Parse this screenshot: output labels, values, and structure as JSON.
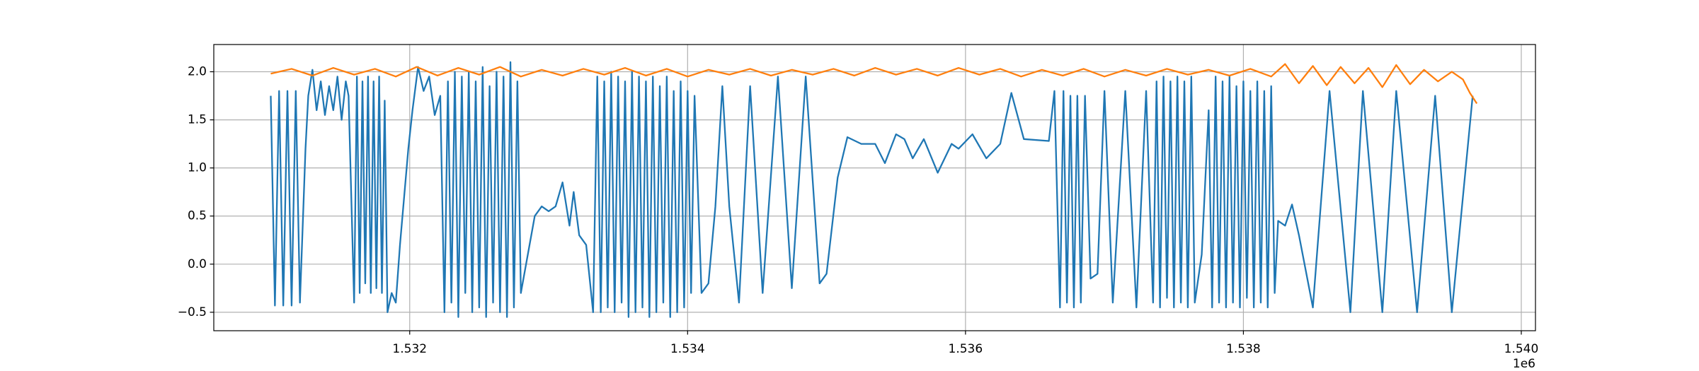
{
  "chart_data": {
    "type": "line",
    "x_offset_label": "1e6",
    "xlim": [
      1530590,
      1540102
    ],
    "ylim": [
      -0.692,
      2.283
    ],
    "xticks": [
      {
        "value": 1532000,
        "label": "1.532"
      },
      {
        "value": 1534000,
        "label": "1.534"
      },
      {
        "value": 1536000,
        "label": "1.536"
      },
      {
        "value": 1538000,
        "label": "1.538"
      },
      {
        "value": 1540000,
        "label": "1.540"
      }
    ],
    "yticks": [
      {
        "value": -0.5,
        "label": "−0.5"
      },
      {
        "value": 0,
        "label": "0.0"
      },
      0.5,
      {
        "value": 1,
        "label": "1.0"
      },
      {
        "value": 1.5,
        "label": "1.5"
      },
      {
        "value": 2,
        "label": "2.0"
      }
    ],
    "grid": true,
    "series": [
      {
        "color": "#1f77b4",
        "x": [
          1531000,
          1531030,
          1531060,
          1531090,
          1531120,
          1531150,
          1531180,
          1531210,
          1531250,
          1531270,
          1531300,
          1531330,
          1531360,
          1531390,
          1531420,
          1531450,
          1531480,
          1531510,
          1531540,
          1531560,
          1531600,
          1531620,
          1531640,
          1531660,
          1531680,
          1531700,
          1531720,
          1531740,
          1531760,
          1531780,
          1531800,
          1531820,
          1531840,
          1531870,
          1531900,
          1531930,
          1531960,
          1531990,
          1532020,
          1532060,
          1532100,
          1532140,
          1532180,
          1532220,
          1532250,
          1532275,
          1532300,
          1532325,
          1532350,
          1532375,
          1532400,
          1532425,
          1532450,
          1532475,
          1532500,
          1532525,
          1532550,
          1532575,
          1532600,
          1532625,
          1532650,
          1532675,
          1532700,
          1532725,
          1532750,
          1532775,
          1532800,
          1532850,
          1532900,
          1532950,
          1533000,
          1533050,
          1533100,
          1533150,
          1533180,
          1533220,
          1533270,
          1533320,
          1533350,
          1533375,
          1533400,
          1533425,
          1533450,
          1533475,
          1533500,
          1533525,
          1533550,
          1533575,
          1533600,
          1533625,
          1533650,
          1533675,
          1533700,
          1533725,
          1533750,
          1533775,
          1533800,
          1533825,
          1533850,
          1533875,
          1533900,
          1533925,
          1533950,
          1533975,
          1534000,
          1534025,
          1534050,
          1534100,
          1534150,
          1534200,
          1534250,
          1534300,
          1534370,
          1534450,
          1534540,
          1534650,
          1534750,
          1534850,
          1534950,
          1535000,
          1535080,
          1535150,
          1535250,
          1535350,
          1535420,
          1535500,
          1535560,
          1535620,
          1535700,
          1535800,
          1535900,
          1535950,
          1536050,
          1536150,
          1536250,
          1536330,
          1536420,
          1536600,
          1536640,
          1536680,
          1536705,
          1536730,
          1536755,
          1536780,
          1536805,
          1536830,
          1536860,
          1536900,
          1536950,
          1537000,
          1537060,
          1537150,
          1537230,
          1537300,
          1537350,
          1537375,
          1537400,
          1537425,
          1537450,
          1537475,
          1537500,
          1537525,
          1537550,
          1537575,
          1537600,
          1537625,
          1537650,
          1537700,
          1537750,
          1537775,
          1537800,
          1537825,
          1537850,
          1537875,
          1537900,
          1537925,
          1537950,
          1537975,
          1538000,
          1538025,
          1538050,
          1538075,
          1538100,
          1538125,
          1538150,
          1538175,
          1538200,
          1538225,
          1538250,
          1538300,
          1538350,
          1538400,
          1538500,
          1538620,
          1538770,
          1538860,
          1539000,
          1539100,
          1539250,
          1539380,
          1539500,
          1539650
        ],
        "values": [
          1.75,
          -0.43,
          1.8,
          -0.43,
          1.8,
          -0.43,
          1.8,
          -0.4,
          1.2,
          1.75,
          2.02,
          1.6,
          1.9,
          1.55,
          1.85,
          1.6,
          1.95,
          1.5,
          1.9,
          1.75,
          -0.4,
          1.95,
          -0.3,
          1.9,
          -0.2,
          1.95,
          -0.3,
          1.9,
          -0.25,
          1.95,
          -0.3,
          1.7,
          -0.5,
          -0.3,
          -0.4,
          0.2,
          0.7,
          1.2,
          1.6,
          2.05,
          1.8,
          1.95,
          1.55,
          1.75,
          -0.5,
          1.9,
          -0.4,
          2.0,
          -0.55,
          1.95,
          -0.3,
          2.0,
          -0.5,
          1.9,
          -0.45,
          2.05,
          -0.55,
          1.85,
          -0.4,
          2.0,
          -0.5,
          1.95,
          -0.55,
          2.1,
          -0.45,
          1.9,
          -0.3,
          0.1,
          0.5,
          0.6,
          0.55,
          0.6,
          0.85,
          0.4,
          0.75,
          0.3,
          0.2,
          -0.5,
          1.95,
          -0.5,
          1.9,
          -0.45,
          2.0,
          -0.5,
          1.95,
          -0.4,
          1.9,
          -0.55,
          2.0,
          -0.5,
          1.95,
          -0.45,
          1.9,
          -0.55,
          1.95,
          -0.5,
          1.85,
          -0.4,
          1.95,
          -0.55,
          1.8,
          -0.5,
          1.9,
          -0.45,
          1.8,
          -0.3,
          1.75,
          -0.3,
          -0.2,
          0.6,
          1.85,
          0.6,
          -0.4,
          1.85,
          -0.3,
          1.95,
          -0.25,
          1.95,
          -0.2,
          -0.1,
          0.9,
          1.32,
          1.25,
          1.25,
          1.05,
          1.35,
          1.3,
          1.1,
          1.3,
          0.95,
          1.25,
          1.2,
          1.35,
          1.1,
          1.25,
          1.78,
          1.3,
          1.28,
          1.8,
          -0.45,
          1.8,
          -0.4,
          1.75,
          -0.45,
          1.75,
          -0.4,
          1.75,
          -0.15,
          -0.1,
          1.8,
          -0.4,
          1.8,
          -0.45,
          1.8,
          -0.4,
          1.9,
          -0.45,
          1.95,
          -0.35,
          1.9,
          -0.45,
          1.95,
          -0.4,
          1.9,
          -0.45,
          1.95,
          -0.4,
          0.1,
          1.6,
          -0.45,
          1.95,
          -0.4,
          1.9,
          -0.45,
          1.95,
          -0.4,
          1.85,
          -0.45,
          1.9,
          -0.35,
          1.8,
          -0.45,
          1.9,
          -0.4,
          1.8,
          -0.45,
          1.85,
          -0.3,
          0.45,
          0.4,
          0.62,
          0.3,
          -0.45,
          1.8,
          -0.5,
          1.8,
          -0.5,
          1.8,
          -0.5,
          1.75,
          -0.5,
          1.75
        ]
      },
      {
        "color": "#ff7f0e",
        "x": [
          1531000,
          1531150,
          1531300,
          1531450,
          1531600,
          1531750,
          1531900,
          1532050,
          1532200,
          1532350,
          1532500,
          1532650,
          1532800,
          1532950,
          1533100,
          1533250,
          1533400,
          1533550,
          1533700,
          1533850,
          1534000,
          1534150,
          1534300,
          1534450,
          1534600,
          1534750,
          1534900,
          1535050,
          1535200,
          1535350,
          1535500,
          1535650,
          1535800,
          1535950,
          1536100,
          1536250,
          1536400,
          1536550,
          1536700,
          1536850,
          1537000,
          1537150,
          1537300,
          1537450,
          1537600,
          1537750,
          1537900,
          1538050,
          1538200,
          1538300,
          1538400,
          1538500,
          1538600,
          1538700,
          1538800,
          1538900,
          1539000,
          1539100,
          1539200,
          1539300,
          1539400,
          1539500,
          1539580,
          1539630,
          1539680
        ],
        "values": [
          1.98,
          2.03,
          1.96,
          2.04,
          1.97,
          2.03,
          1.95,
          2.05,
          1.96,
          2.04,
          1.97,
          2.05,
          1.95,
          2.02,
          1.96,
          2.03,
          1.97,
          2.04,
          1.96,
          2.03,
          1.95,
          2.02,
          1.97,
          2.03,
          1.96,
          2.02,
          1.97,
          2.03,
          1.96,
          2.04,
          1.97,
          2.03,
          1.96,
          2.04,
          1.97,
          2.03,
          1.95,
          2.02,
          1.96,
          2.03,
          1.95,
          2.02,
          1.96,
          2.03,
          1.97,
          2.02,
          1.96,
          2.03,
          1.95,
          2.08,
          1.88,
          2.06,
          1.86,
          2.05,
          1.88,
          2.04,
          1.84,
          2.07,
          1.87,
          2.02,
          1.9,
          2.0,
          1.92,
          1.78,
          1.67
        ]
      }
    ]
  }
}
